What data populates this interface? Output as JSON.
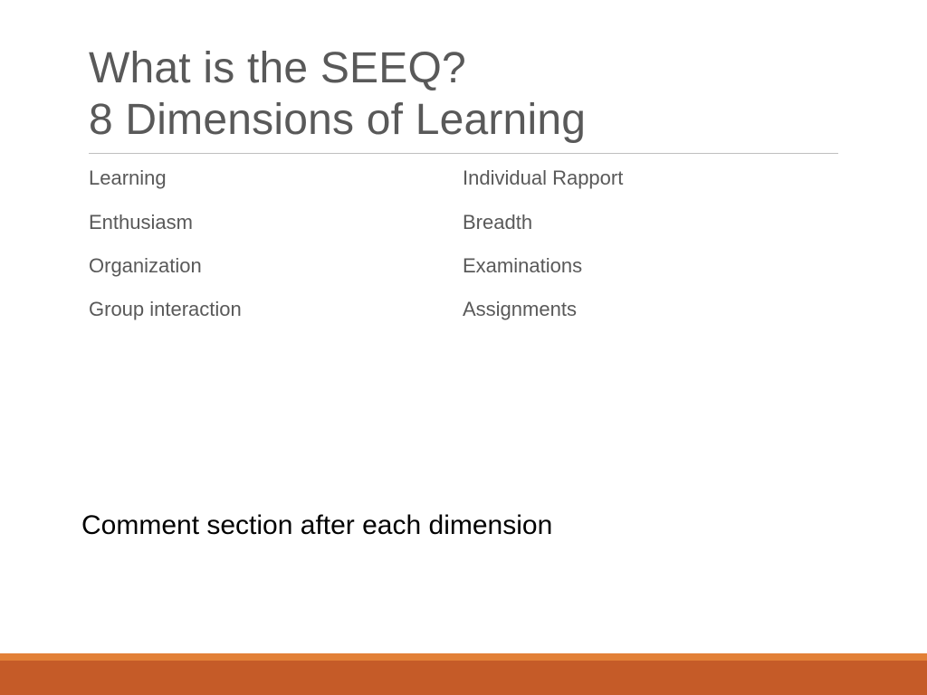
{
  "title": {
    "line1": "What is the SEEQ?",
    "line2": "8 Dimensions of Learning",
    "color": "#595959",
    "fontsize": 48,
    "rule_color": "#bfbfbf"
  },
  "dimensions": {
    "left": [
      "Learning",
      "Enthusiasm",
      "Organization",
      "Group interaction"
    ],
    "right": [
      "Individual Rapport",
      "Breadth",
      "Examinations",
      "Assignments"
    ],
    "color": "#595959",
    "fontsize": 22
  },
  "footnote": {
    "text": "Comment section after each dimension",
    "color": "#000000",
    "fontsize": 30
  },
  "footer": {
    "thin_bar_color": "#e28037",
    "thick_bar_color": "#c55b28",
    "thin_bar_height": 8,
    "thick_bar_height": 38
  },
  "background_color": "#ffffff"
}
